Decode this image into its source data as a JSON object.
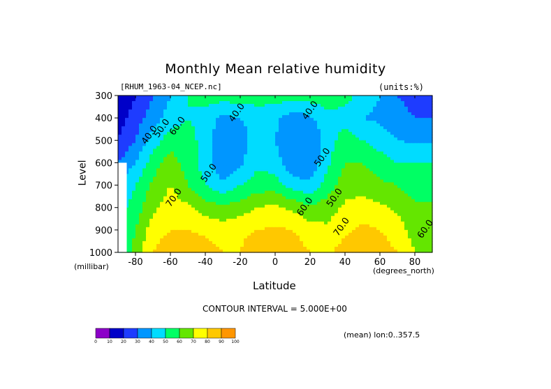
{
  "title": "Monthly Mean relative humidity",
  "dataset_label": "[RHUM_1963-04_NCEP.nc]",
  "units_label": "(units:%)",
  "y_axis_label": "Level",
  "y_unit_label": "(millibar)",
  "x_axis_label": "Latitude",
  "x_unit_label": "(degrees_north)",
  "contour_interval_label": "CONTOUR INTERVAL = 5.000E+00",
  "mean_label": "(mean) lon:0..357.5",
  "chart_data": {
    "type": "heatmap",
    "title": "Monthly Mean relative humidity",
    "xlabel": "Latitude",
    "ylabel": "Level",
    "x_unit": "degrees_north",
    "y_unit": "millibar",
    "units": "%",
    "xlim": [
      -90,
      90
    ],
    "ylim": [
      1000,
      300
    ],
    "x_ticks": [
      -80,
      -60,
      -40,
      -20,
      0,
      20,
      40,
      60,
      80
    ],
    "x_tick_labels": [
      "-80",
      "-60",
      "-40",
      "-20",
      "0",
      "20",
      "40",
      "60",
      "80"
    ],
    "y_ticks": [
      300,
      400,
      500,
      600,
      700,
      800,
      900,
      1000
    ],
    "y_tick_labels": [
      "300",
      "400",
      "500",
      "600",
      "700",
      "800",
      "900",
      "1000"
    ],
    "contour_interval": 5,
    "latitudes": [
      -90,
      -80,
      -70,
      -60,
      -50,
      -40,
      -30,
      -20,
      -10,
      0,
      10,
      20,
      30,
      40,
      50,
      60,
      70,
      80,
      90
    ],
    "levels": [
      300,
      400,
      500,
      600,
      700,
      800,
      900,
      1000
    ],
    "values": [
      [
        10,
        20,
        30,
        40,
        50,
        55,
        55,
        55,
        55,
        55,
        55,
        55,
        55,
        55,
        45,
        40,
        30,
        25,
        25
      ],
      [
        15,
        25,
        35,
        45,
        50,
        45,
        38,
        40,
        45,
        42,
        35,
        38,
        48,
        45,
        40,
        38,
        35,
        30,
        30
      ],
      [
        20,
        30,
        45,
        55,
        55,
        45,
        32,
        35,
        45,
        40,
        30,
        30,
        45,
        55,
        50,
        45,
        40,
        38,
        38
      ],
      [
        30,
        40,
        55,
        65,
        55,
        45,
        32,
        38,
        48,
        45,
        32,
        32,
        48,
        60,
        60,
        55,
        50,
        50,
        50
      ],
      [
        40,
        50,
        62,
        70,
        60,
        50,
        42,
        50,
        55,
        55,
        45,
        42,
        55,
        65,
        65,
        62,
        60,
        55,
        55
      ],
      [
        45,
        55,
        68,
        75,
        72,
        65,
        62,
        65,
        70,
        72,
        68,
        62,
        65,
        72,
        75,
        72,
        68,
        62,
        62
      ],
      [
        45,
        60,
        75,
        80,
        80,
        78,
        75,
        78,
        80,
        82,
        80,
        75,
        72,
        78,
        82,
        80,
        75,
        65,
        65
      ],
      [
        45,
        65,
        80,
        88,
        88,
        85,
        80,
        80,
        86,
        88,
        85,
        80,
        78,
        85,
        88,
        85,
        80,
        70,
        70
      ]
    ],
    "contour_labels": [
      "40.0",
      "50.0",
      "60.0",
      "40.0",
      "40.0",
      "50.0",
      "70.0",
      "50.0",
      "60.0",
      "50.0",
      "70.0",
      "60.0"
    ],
    "colorbar": {
      "colors": [
        "#8c00c8",
        "#0000c8",
        "#1e3cff",
        "#0096ff",
        "#00dcff",
        "#00ff64",
        "#64e600",
        "#ffff00",
        "#ffc800",
        "#ff9600",
        "#ff5a00",
        "#ff0000"
      ],
      "tick_labels": [
        "0",
        "10",
        "20",
        "30",
        "40",
        "50",
        "60",
        "70",
        "80",
        "90",
        "100"
      ]
    }
  }
}
